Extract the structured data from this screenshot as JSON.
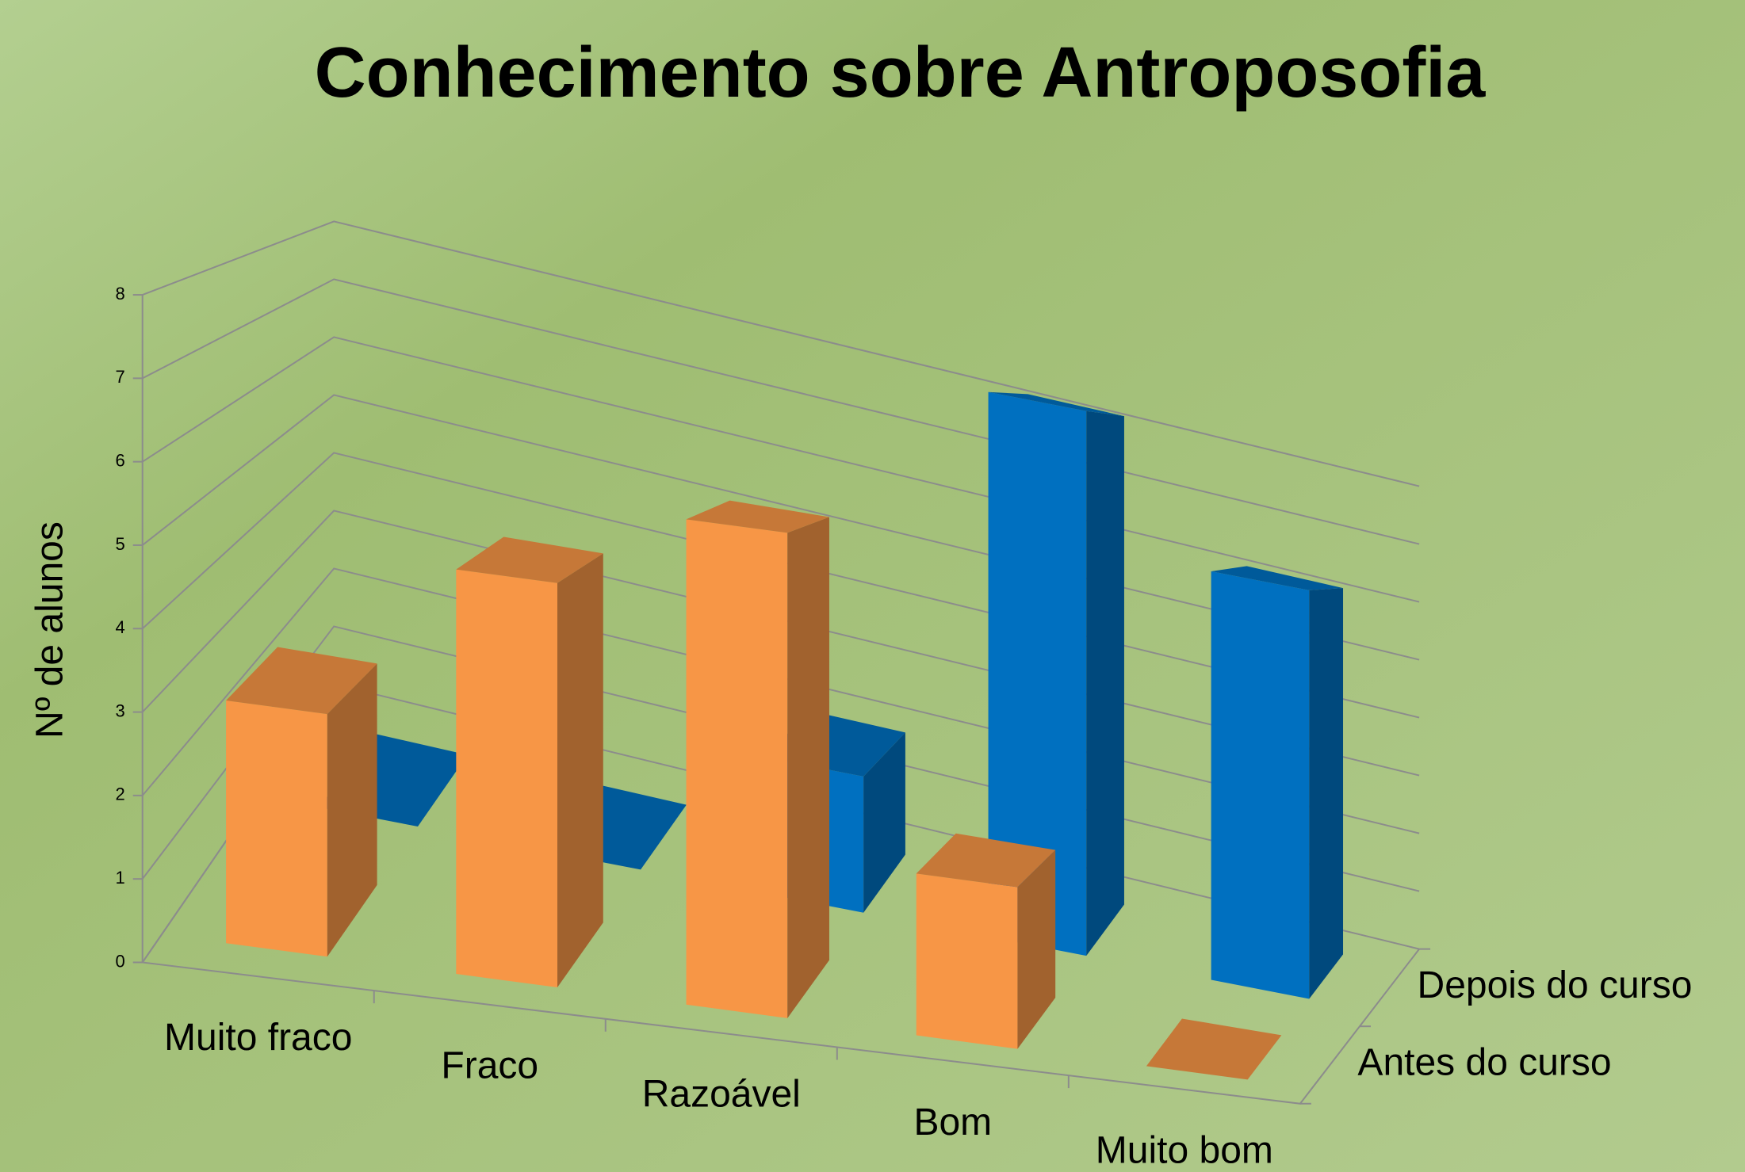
{
  "chart_data": {
    "type": "bar3d",
    "title": "Conhecimento sobre Antroposofia",
    "ylabel": "Nº de alunos",
    "categories": [
      "Muito fraco",
      "Fraco",
      "Razoável",
      "Bom",
      "Muito bom"
    ],
    "series": [
      {
        "name": "Antes do curso",
        "color": "#f79646",
        "values": [
          3,
          5,
          6,
          2,
          0
        ]
      },
      {
        "name": "Depois do curso",
        "color": "#0070c0",
        "values": [
          0,
          0,
          2,
          8,
          6
        ]
      }
    ],
    "ylim": [
      0,
      8
    ],
    "yticks": [
      0,
      1,
      2,
      3,
      4,
      5,
      6,
      7,
      8
    ],
    "grid": true
  }
}
